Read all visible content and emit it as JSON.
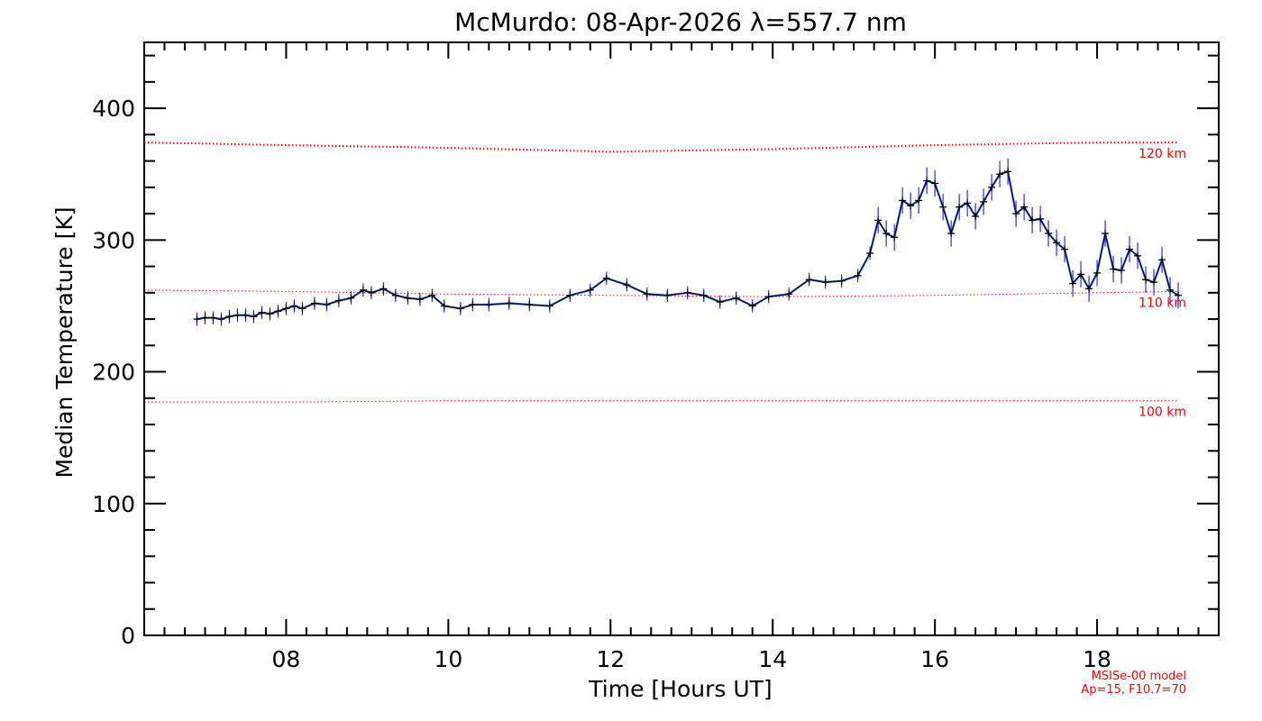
{
  "chart_data": {
    "type": "line",
    "title": "McMurdo: 08-Apr-2026 λ=557.7 nm",
    "xlabel": "Time [Hours UT]",
    "ylabel": "Median Temperature [K]",
    "xlim": [
      6.25,
      19.5
    ],
    "ylim": [
      0,
      450
    ],
    "x_ticks": [
      8,
      10,
      12,
      14,
      16,
      18
    ],
    "x_tick_labels": [
      "08",
      "10",
      "12",
      "14",
      "16",
      "18"
    ],
    "y_ticks": [
      0,
      100,
      200,
      300,
      400
    ],
    "y_tick_labels": [
      "0",
      "100",
      "200",
      "300",
      "400"
    ],
    "grid": false,
    "series": [
      {
        "role": "measurement",
        "color": "#000000",
        "error_color": "#0000ff",
        "x": [
          6.9,
          7.0,
          7.1,
          7.2,
          7.3,
          7.4,
          7.5,
          7.6,
          7.7,
          7.8,
          7.9,
          8.0,
          8.1,
          8.2,
          8.35,
          8.5,
          8.65,
          8.8,
          8.95,
          9.05,
          9.2,
          9.35,
          9.5,
          9.65,
          9.8,
          9.95,
          10.15,
          10.3,
          10.5,
          10.75,
          11.0,
          11.25,
          11.5,
          11.75,
          11.95,
          12.2,
          12.45,
          12.7,
          12.95,
          13.15,
          13.35,
          13.55,
          13.75,
          13.95,
          14.2,
          14.45,
          14.65,
          14.85,
          15.05,
          15.2,
          15.3,
          15.4,
          15.5,
          15.6,
          15.7,
          15.8,
          15.9,
          16.0,
          16.1,
          16.2,
          16.3,
          16.4,
          16.5,
          16.6,
          16.7,
          16.8,
          16.9,
          17.0,
          17.1,
          17.2,
          17.3,
          17.4,
          17.5,
          17.6,
          17.7,
          17.8,
          17.9,
          18.0,
          18.1,
          18.2,
          18.3,
          18.4,
          18.5,
          18.6,
          18.7,
          18.8,
          18.9,
          19.0
        ],
        "y": [
          240,
          241,
          241,
          240,
          242,
          243,
          243,
          242,
          245,
          244,
          246,
          248,
          250,
          248,
          252,
          251,
          254,
          256,
          262,
          260,
          263,
          258,
          256,
          255,
          258,
          250,
          248,
          251,
          251,
          252,
          251,
          250,
          258,
          262,
          271,
          266,
          259,
          258,
          260,
          258,
          253,
          256,
          250,
          257,
          259,
          270,
          268,
          269,
          273,
          290,
          315,
          305,
          302,
          330,
          326,
          330,
          345,
          343,
          325,
          305,
          325,
          328,
          318,
          329,
          340,
          350,
          352,
          320,
          325,
          315,
          316,
          305,
          298,
          293,
          267,
          274,
          263,
          275,
          305,
          278,
          277,
          293,
          288,
          270,
          268,
          285,
          262,
          258
        ]
      },
      {
        "role": "model",
        "name": "120 km",
        "color": "#ff0000",
        "x": [
          6.25,
          8.0,
          10.0,
          12.0,
          14.0,
          16.0,
          18.0,
          19.0
        ],
        "y": [
          374,
          372,
          370,
          367,
          369,
          372,
          374,
          374
        ]
      },
      {
        "role": "model",
        "name": "110 km",
        "color": "#ff0000",
        "x": [
          6.25,
          8.0,
          10.0,
          12.0,
          14.0,
          16.0,
          18.0,
          19.0
        ],
        "y": [
          262,
          261,
          259,
          258,
          257,
          258,
          260,
          261
        ]
      },
      {
        "role": "model",
        "name": "100 km",
        "color": "#ff0000",
        "x": [
          6.25,
          8.0,
          10.0,
          12.0,
          14.0,
          16.0,
          18.0,
          19.0
        ],
        "y": [
          177,
          177,
          178,
          178,
          178,
          178,
          178,
          178
        ]
      }
    ],
    "annotations": [
      "MSISe-00 model",
      "Ap=15, F10.7=70"
    ]
  }
}
